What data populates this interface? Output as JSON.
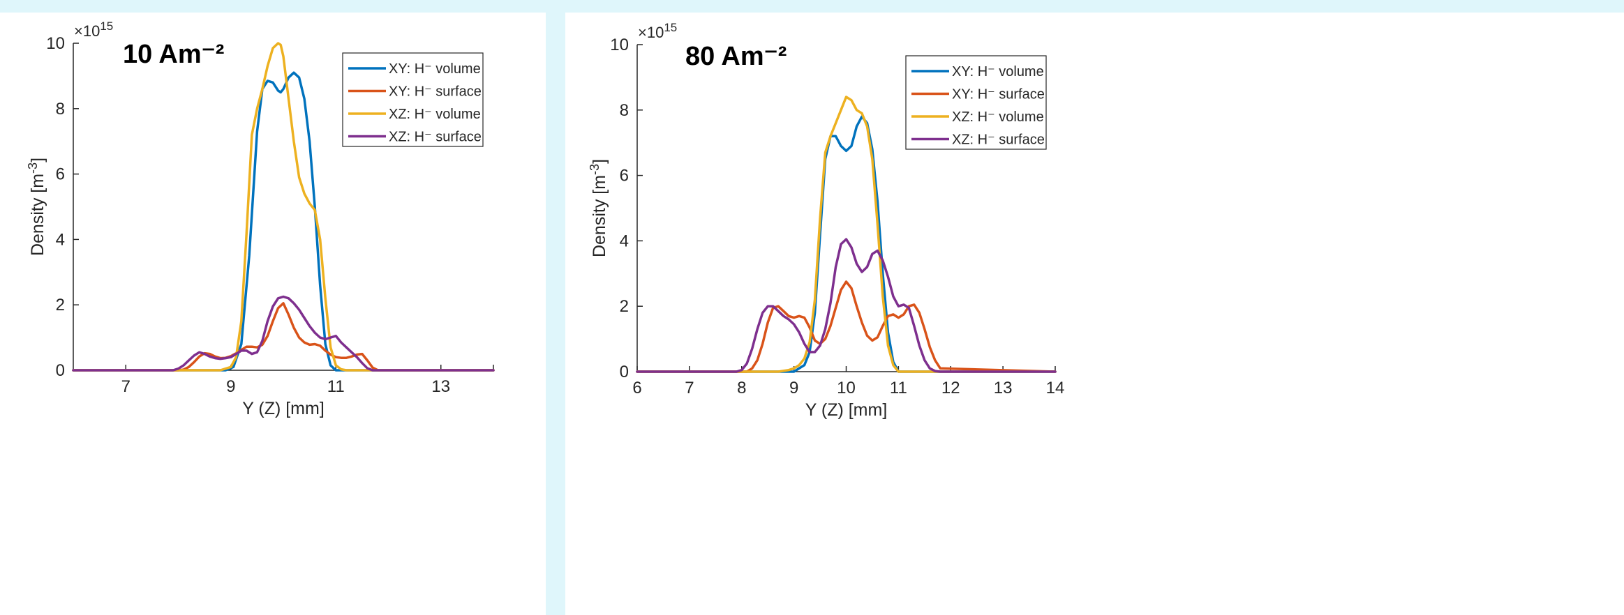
{
  "chart_data": [
    {
      "type": "line",
      "annotation": "10 Am⁻²",
      "xlabel": "Y (Z) [mm]",
      "ylabel_main": "Density [m",
      "ylabel_exp": "-3",
      "ylabel_close": "]",
      "exponent_prefix": "×10",
      "exponent_power": "15",
      "xlim": [
        6,
        14
      ],
      "ylim": [
        0,
        10
      ],
      "xticks": [
        7,
        9,
        11,
        13
      ],
      "yticks": [
        0,
        2,
        4,
        6,
        8,
        10
      ],
      "grid": false,
      "legend_position": "top-right",
      "series": [
        {
          "name": "XY: H⁻ volume",
          "color": "#0072BD",
          "x": [
            6,
            8.9,
            9.05,
            9.2,
            9.35,
            9.5,
            9.6,
            9.7,
            9.8,
            9.9,
            9.95,
            10.0,
            10.1,
            10.2,
            10.3,
            10.4,
            10.5,
            10.6,
            10.7,
            10.8,
            10.9,
            11.0,
            14
          ],
          "y": [
            0,
            0,
            0.1,
            0.8,
            3.5,
            7.3,
            8.6,
            8.85,
            8.8,
            8.55,
            8.5,
            8.6,
            8.95,
            9.1,
            8.95,
            8.3,
            7.0,
            5.0,
            2.6,
            0.8,
            0.15,
            0,
            0
          ]
        },
        {
          "name": "XY: H⁻ surface",
          "color": "#D95319",
          "x": [
            6,
            8.0,
            8.1,
            8.2,
            8.3,
            8.4,
            8.5,
            8.6,
            8.7,
            8.8,
            8.9,
            9.0,
            9.1,
            9.2,
            9.3,
            9.4,
            9.5,
            9.6,
            9.7,
            9.8,
            9.9,
            10.0,
            10.1,
            10.2,
            10.3,
            10.4,
            10.5,
            10.6,
            10.7,
            10.8,
            10.9,
            11.0,
            11.1,
            11.2,
            11.3,
            11.4,
            11.5,
            11.6,
            11.7,
            11.8,
            14
          ],
          "y": [
            0,
            0,
            0.02,
            0.1,
            0.25,
            0.42,
            0.52,
            0.5,
            0.42,
            0.37,
            0.38,
            0.43,
            0.52,
            0.62,
            0.72,
            0.72,
            0.7,
            0.78,
            1.05,
            1.5,
            1.9,
            2.05,
            1.7,
            1.3,
            1.0,
            0.85,
            0.78,
            0.8,
            0.75,
            0.6,
            0.48,
            0.4,
            0.38,
            0.38,
            0.42,
            0.48,
            0.5,
            0.3,
            0.08,
            0,
            0
          ]
        },
        {
          "name": "XZ: H⁻ volume",
          "color": "#EDB120",
          "x": [
            6,
            8.8,
            9.0,
            9.1,
            9.2,
            9.3,
            9.4,
            9.5,
            9.6,
            9.7,
            9.8,
            9.9,
            9.95,
            10.0,
            10.1,
            10.2,
            10.3,
            10.4,
            10.5,
            10.6,
            10.7,
            10.8,
            10.9,
            11.0,
            11.1,
            11.2,
            14
          ],
          "y": [
            0,
            0,
            0.1,
            0.4,
            1.5,
            4.2,
            7.2,
            8.0,
            8.6,
            9.3,
            9.85,
            10.0,
            9.95,
            9.6,
            8.3,
            7.0,
            5.9,
            5.4,
            5.1,
            4.9,
            4.0,
            2.2,
            0.7,
            0.15,
            0.03,
            0,
            0
          ]
        },
        {
          "name": "XZ: H⁻ surface",
          "color": "#7E2F8E",
          "x": [
            6,
            7.9,
            8.0,
            8.1,
            8.2,
            8.3,
            8.4,
            8.5,
            8.6,
            8.7,
            8.8,
            8.9,
            9.0,
            9.1,
            9.2,
            9.3,
            9.4,
            9.5,
            9.6,
            9.7,
            9.8,
            9.9,
            10.0,
            10.1,
            10.2,
            10.3,
            10.4,
            10.5,
            10.6,
            10.7,
            10.8,
            10.9,
            11.0,
            11.1,
            11.2,
            11.3,
            11.4,
            11.5,
            11.6,
            11.7,
            14
          ],
          "y": [
            0,
            0,
            0.05,
            0.15,
            0.3,
            0.45,
            0.55,
            0.5,
            0.42,
            0.37,
            0.35,
            0.37,
            0.4,
            0.5,
            0.6,
            0.6,
            0.5,
            0.55,
            0.9,
            1.5,
            1.95,
            2.2,
            2.25,
            2.2,
            2.05,
            1.85,
            1.6,
            1.35,
            1.15,
            1.0,
            0.95,
            1.0,
            1.05,
            0.85,
            0.7,
            0.55,
            0.4,
            0.22,
            0.06,
            0,
            0
          ]
        }
      ]
    },
    {
      "type": "line",
      "annotation": "80 Am⁻²",
      "xlabel": "Y (Z) [mm]",
      "ylabel_main": "Density [m",
      "ylabel_exp": "-3",
      "ylabel_close": "]",
      "exponent_prefix": "×10",
      "exponent_power": "15",
      "xlim": [
        6,
        14
      ],
      "ylim": [
        0,
        10
      ],
      "xticks": [
        6,
        7,
        8,
        9,
        10,
        11,
        12,
        13,
        14
      ],
      "yticks": [
        0,
        2,
        4,
        6,
        8,
        10
      ],
      "grid": false,
      "legend_position": "top-right",
      "series": [
        {
          "name": "XY: H⁻ volume",
          "color": "#0072BD",
          "x": [
            6,
            9.0,
            9.2,
            9.3,
            9.4,
            9.5,
            9.6,
            9.7,
            9.8,
            9.9,
            10.0,
            10.1,
            10.2,
            10.3,
            10.4,
            10.5,
            10.6,
            10.7,
            10.8,
            10.9,
            11.0,
            14
          ],
          "y": [
            0,
            0,
            0.2,
            0.6,
            1.8,
            4.2,
            6.5,
            7.2,
            7.2,
            6.9,
            6.75,
            6.9,
            7.5,
            7.8,
            7.6,
            6.8,
            5.2,
            3.0,
            1.2,
            0.3,
            0,
            0
          ]
        },
        {
          "name": "XY: H⁻ surface",
          "color": "#D95319",
          "x": [
            6,
            8.1,
            8.2,
            8.3,
            8.4,
            8.5,
            8.6,
            8.7,
            8.8,
            8.9,
            9.0,
            9.1,
            9.2,
            9.3,
            9.4,
            9.5,
            9.6,
            9.7,
            9.8,
            9.9,
            10.0,
            10.1,
            10.2,
            10.3,
            10.4,
            10.5,
            10.6,
            10.7,
            10.8,
            10.9,
            11.0,
            11.1,
            11.2,
            11.3,
            11.4,
            11.5,
            11.6,
            11.7,
            11.8,
            14
          ],
          "y": [
            0,
            0,
            0.1,
            0.35,
            0.85,
            1.5,
            1.95,
            2.0,
            1.85,
            1.7,
            1.65,
            1.7,
            1.65,
            1.35,
            0.95,
            0.85,
            1.0,
            1.4,
            1.95,
            2.5,
            2.75,
            2.55,
            2.0,
            1.5,
            1.1,
            0.95,
            1.05,
            1.4,
            1.7,
            1.75,
            1.65,
            1.75,
            2.0,
            2.05,
            1.8,
            1.3,
            0.75,
            0.35,
            0.1,
            0
          ]
        },
        {
          "name": "XZ: H⁻ volume",
          "color": "#EDB120",
          "x": [
            6,
            8.7,
            8.9,
            9.0,
            9.1,
            9.2,
            9.3,
            9.4,
            9.5,
            9.6,
            9.7,
            9.8,
            9.9,
            10.0,
            10.1,
            10.2,
            10.3,
            10.4,
            10.5,
            10.6,
            10.7,
            10.8,
            10.9,
            11.0,
            14
          ],
          "y": [
            0,
            0,
            0.05,
            0.1,
            0.2,
            0.4,
            0.9,
            2.2,
            4.7,
            6.7,
            7.2,
            7.6,
            8.0,
            8.4,
            8.3,
            8.0,
            7.9,
            7.5,
            6.5,
            4.5,
            2.3,
            0.8,
            0.2,
            0,
            0
          ]
        },
        {
          "name": "XZ: H⁻ surface",
          "color": "#7E2F8E",
          "x": [
            6,
            7.9,
            8.0,
            8.1,
            8.2,
            8.3,
            8.4,
            8.5,
            8.6,
            8.7,
            8.8,
            8.9,
            9.0,
            9.1,
            9.2,
            9.3,
            9.4,
            9.5,
            9.6,
            9.7,
            9.8,
            9.9,
            10.0,
            10.1,
            10.2,
            10.3,
            10.4,
            10.5,
            10.6,
            10.7,
            10.8,
            10.9,
            11.0,
            11.1,
            11.2,
            11.3,
            11.4,
            11.5,
            11.6,
            11.7,
            11.8,
            14
          ],
          "y": [
            0,
            0,
            0.05,
            0.25,
            0.7,
            1.3,
            1.8,
            2.0,
            2.0,
            1.85,
            1.7,
            1.6,
            1.45,
            1.2,
            0.85,
            0.6,
            0.6,
            0.8,
            1.3,
            2.1,
            3.2,
            3.9,
            4.05,
            3.8,
            3.3,
            3.05,
            3.2,
            3.6,
            3.7,
            3.4,
            2.9,
            2.3,
            2.0,
            2.05,
            1.95,
            1.4,
            0.8,
            0.35,
            0.1,
            0.02,
            0,
            0
          ]
        }
      ]
    }
  ]
}
